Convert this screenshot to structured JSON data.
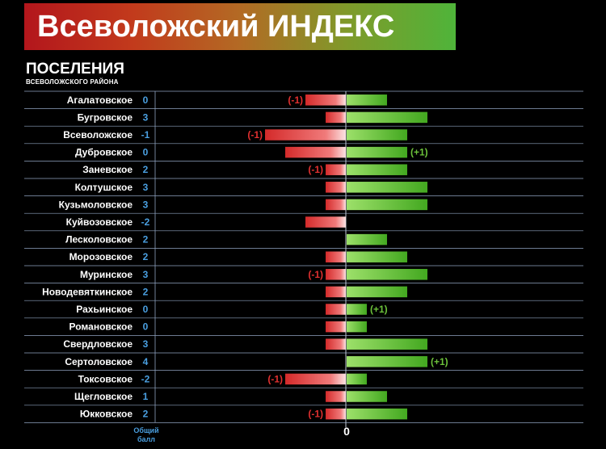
{
  "header": {
    "title": "Всеволожский ИНДЕКС",
    "subtitle": "ПОСЕЛЕНИЯ",
    "subtitle_small": "ВСЕВОЛОЖСКОГО РАЙОНА"
  },
  "footer": {
    "score_label_line1": "Общий",
    "score_label_line2": "балл",
    "zero_label": "0"
  },
  "colors": {
    "negative": "#e23030",
    "positive": "#6cc23a",
    "score_text": "#4a9fe0",
    "grid": "#8fa3c0"
  },
  "chart_data": {
    "type": "bar",
    "orientation": "horizontal-diverging",
    "xlim": [
      -4,
      4
    ],
    "categories": [
      "Агалатовское",
      "Бугровское",
      "Всеволожское",
      "Дубровское",
      "Заневское",
      "Колтушское",
      "Кузьмоловское",
      "Куйвозовское",
      "Лесколовское",
      "Морозовское",
      "Муринское",
      "Новодевяткинское",
      "Рахьинское",
      "Романовское",
      "Свердловское",
      "Сертоловское",
      "Токсовское",
      "Щегловское",
      "Юкковское"
    ],
    "scores": [
      0,
      3,
      -1,
      0,
      2,
      3,
      3,
      -2,
      2,
      2,
      3,
      2,
      0,
      0,
      3,
      4,
      -2,
      1,
      2
    ],
    "score_labels": [
      "0",
      "3",
      "-1",
      "0",
      "2",
      "3",
      "3",
      "-2",
      "2",
      "2",
      "3",
      "2",
      "0",
      "0",
      "3",
      "4",
      "-2",
      "1",
      "2"
    ],
    "series": [
      {
        "values": [
          -2,
          -1,
          -4,
          -3,
          -1,
          -1,
          -1,
          -2,
          0,
          -1,
          -1,
          -1,
          -1,
          -1,
          -1,
          0,
          -3,
          -1,
          -1
        ]
      },
      {
        "values": [
          2,
          4,
          3,
          3,
          3,
          4,
          4,
          0,
          2,
          3,
          4,
          3,
          1,
          1,
          4,
          4,
          1,
          2,
          3
        ]
      }
    ],
    "annotations": [
      "(-1)",
      "",
      "(-1)",
      "(+1)",
      "(-1)",
      "",
      "",
      "",
      "",
      "",
      "(-1)",
      "",
      "(+1)",
      "",
      "",
      "(+1)",
      "(-1)",
      "",
      "(-1)"
    ],
    "annotation_side": [
      "neg",
      "",
      "neg",
      "pos",
      "neg",
      "",
      "",
      "",
      "",
      "",
      "neg",
      "",
      "pos",
      "",
      "",
      "pos",
      "neg",
      "",
      "neg"
    ]
  }
}
